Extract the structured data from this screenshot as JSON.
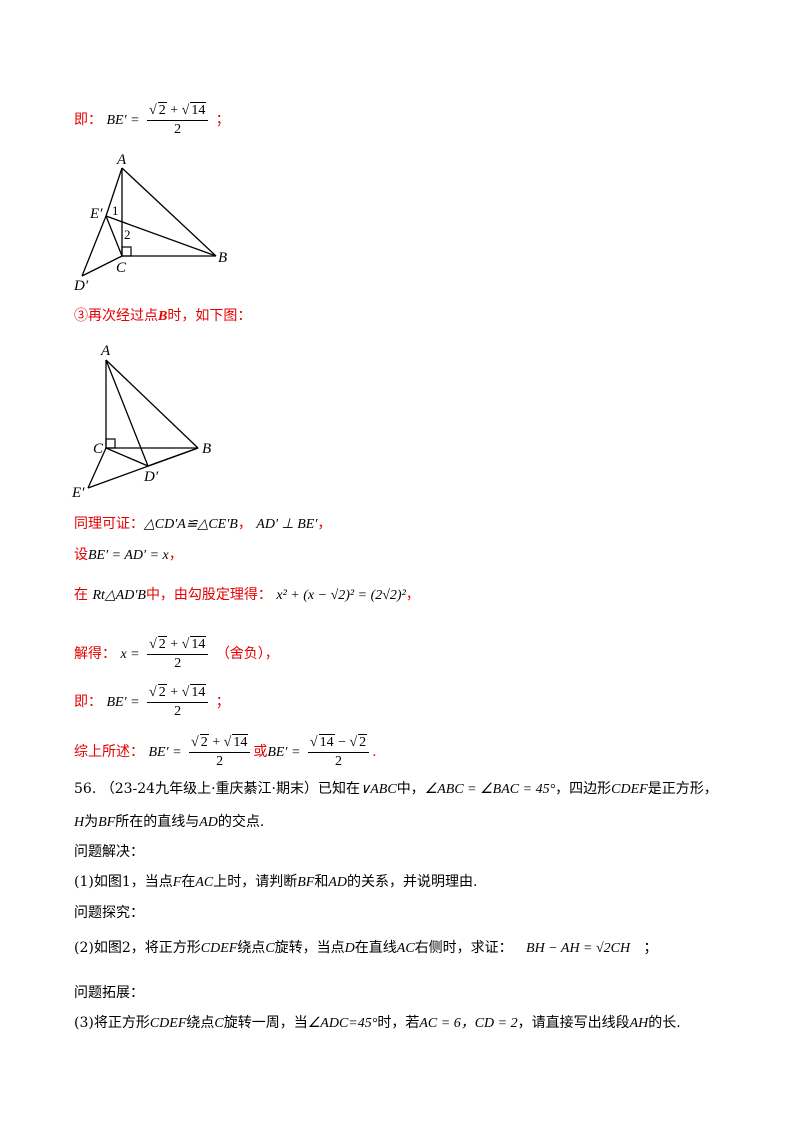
{
  "sol_top": {
    "prefix": "即：",
    "lhs": "BE′ =",
    "num_a": "2",
    "plus": "+",
    "num_b": "14",
    "den": "2",
    "suffix": "；"
  },
  "fig1": {
    "labels": {
      "A": "A",
      "E": "E′",
      "one": "1",
      "two": "2",
      "B": "B",
      "C": "C",
      "D": "D′"
    }
  },
  "case3": {
    "text": "③再次经过点",
    "point": "B",
    "tail": "时，如下图："
  },
  "fig2": {
    "labels": {
      "A": "A",
      "C": "C",
      "B": "B",
      "D": "D′",
      "E": "E′"
    }
  },
  "sol": {
    "congruent_prefix": "同理可证：",
    "congruent_math": "△CD′A≌△CE′B",
    "congruent_sep": "，",
    "perp_math": "AD′ ⊥ BE′",
    "perp_suffix": "，",
    "let_prefix": "设",
    "let_math": "BE′ = AD′ = x",
    "let_suffix": "，",
    "rt_prefix": "在",
    "rt_math": "Rt△AD′B",
    "rt_mid": "中，由勾股定理得：",
    "pyth_math": "x² + (x − √2)² = (2√2)²",
    "pyth_suffix": "，",
    "solve_prefix": "解得：",
    "solve_lhs": "x =",
    "solve_num_a": "2",
    "solve_plus": "+",
    "solve_num_b": "14",
    "solve_den": "2",
    "solve_note": "（舍负），",
    "ji_prefix": "即：",
    "ji_lhs": "BE′ =",
    "ji_num_a": "2",
    "ji_plus": "+",
    "ji_num_b": "14",
    "ji_den": "2",
    "ji_suffix": "；",
    "summary_prefix": "综上所述：",
    "summary_lhs1": "BE′ =",
    "summary_num1_a": "2",
    "summary_plus1": "+",
    "summary_num1_b": "14",
    "summary_den1": "2",
    "summary_or": "或",
    "summary_lhs2": "BE′ =",
    "summary_num2_a": "14",
    "summary_minus2": "−",
    "summary_num2_b": "2",
    "summary_den2": "2",
    "summary_end": "."
  },
  "problem": {
    "number": "56.",
    "source": "（23-24九年级上·重庆綦江·期末）已知在",
    "tri": "∨ABC",
    "intro2": "中，",
    "angles": "∠ABC = ∠BAC = 45°",
    "intro3": "，四边形",
    "square": "CDEF",
    "intro4": "是正方形，",
    "line2_H": "H",
    "line2_a": "为",
    "line2_BF": "BF",
    "line2_b": "所在的直线与",
    "line2_AD": "AD",
    "line2_c": "的交点.",
    "heading1": "问题解决：",
    "q1_a": "(1)如图1，当点",
    "q1_F": "F",
    "q1_b": "在",
    "q1_AC": "AC",
    "q1_c": "上时，请判断",
    "q1_BF": "BF",
    "q1_d": "和",
    "q1_AD": "AD",
    "q1_e": "的关系，并说明理由.",
    "heading2": "问题探究：",
    "q2_a": "(2)如图2，将正方形",
    "q2_sq": "CDEF",
    "q2_b": "绕点",
    "q2_C": "C",
    "q2_c": "旋转，当点",
    "q2_D": "D",
    "q2_d": "在直线",
    "q2_AC": "AC",
    "q2_e": "右侧时，求证：",
    "q2_eq": "BH − AH = √2CH",
    "q2_end": "；",
    "heading3": "问题拓展：",
    "q3_a": "(3)将正方形",
    "q3_sq": "CDEF",
    "q3_b": "绕点",
    "q3_C": "C",
    "q3_c": "旋转一周，当",
    "q3_angle": "∠ADC=45°",
    "q3_d": "时，若",
    "q3_AC": "AC = 6，CD = 2",
    "q3_e": "，请直接写出线段",
    "q3_AH": "AH",
    "q3_f": "的长."
  }
}
